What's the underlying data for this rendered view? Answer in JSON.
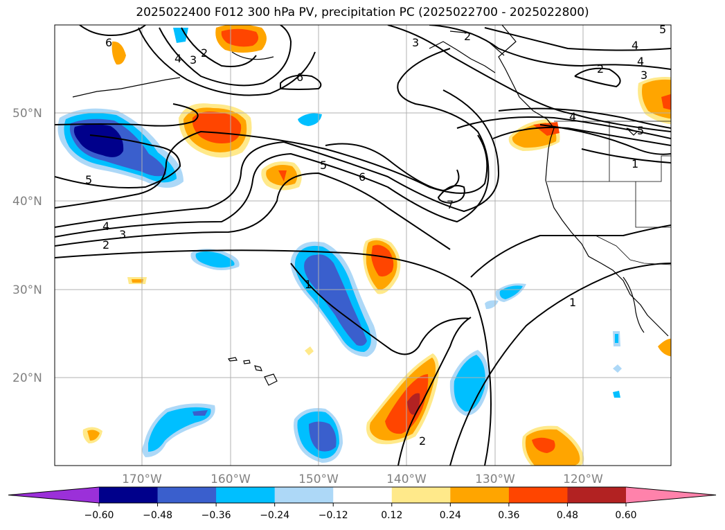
{
  "title": "2025022400 F012 300 hPa PV, precipitation PC (2025022700 - 2025022800)",
  "lat_labels": [
    "50°N",
    "40°N",
    "30°N",
    "20°N"
  ],
  "lon_labels": [
    "170°W",
    "160°W",
    "150°W",
    "140°W",
    "130°W",
    "120°W"
  ],
  "contour_labels": [
    "6",
    "4",
    "3",
    "2",
    "6",
    "3",
    "2",
    "4",
    "4",
    "3",
    "2",
    "5",
    "4",
    "5",
    "1",
    "5",
    "6",
    "5",
    "7",
    "4",
    "3",
    "2",
    "1",
    "1",
    "2"
  ],
  "colorbar": {
    "ticks": [
      "−0.60",
      "−0.48",
      "−0.36",
      "−0.24",
      "−0.12",
      "0.12",
      "0.24",
      "0.36",
      "0.48",
      "0.60"
    ],
    "levels": [
      -0.6,
      -0.48,
      -0.36,
      -0.24,
      -0.12,
      0.12,
      0.24,
      0.36,
      0.48,
      0.6
    ],
    "colors": [
      "#9b30d9",
      "#00008b",
      "#3a5fcd",
      "#00bfff",
      "#add8f7",
      "#ffffff",
      "#ffe98a",
      "#ffa500",
      "#ff4500",
      "#b22222",
      "#ff82ab"
    ]
  }
}
